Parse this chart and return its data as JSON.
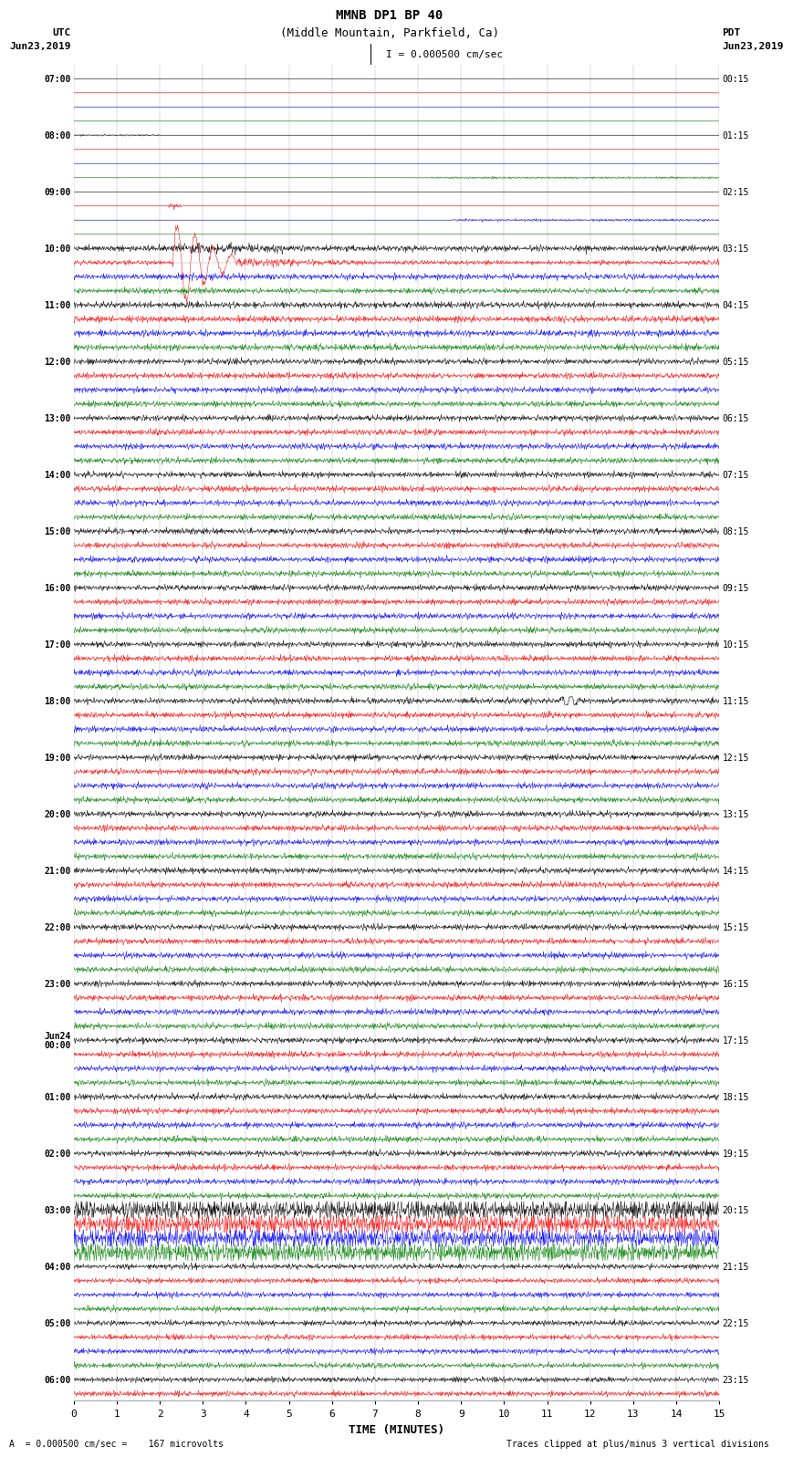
{
  "title_line1": "MMNB DP1 BP 40",
  "title_line2": "(Middle Mountain, Parkfield, Ca)",
  "scale_label": "I = 0.000500 cm/sec",
  "footer_left": "= 0.000500 cm/sec =    167 microvolts",
  "footer_right": "Traces clipped at plus/minus 3 vertical divisions",
  "xlabel": "TIME (MINUTES)",
  "left_label": "UTC",
  "right_label": "PDT",
  "left_date": "Jun23,2019",
  "right_date": "Jun23,2019",
  "xlim": [
    0,
    15
  ],
  "background_color": "#ffffff",
  "trace_colors": [
    "black",
    "red",
    "blue",
    "green"
  ],
  "grid_color": "#aaaaaa",
  "fig_width": 8.5,
  "fig_height": 16.13,
  "dpi": 100,
  "left_utc_labels": [
    "07:00",
    "",
    "",
    "",
    "08:00",
    "",
    "",
    "",
    "09:00",
    "",
    "",
    "",
    "10:00",
    "",
    "",
    "",
    "11:00",
    "",
    "",
    "",
    "12:00",
    "",
    "",
    "",
    "13:00",
    "",
    "",
    "",
    "14:00",
    "",
    "",
    "",
    "15:00",
    "",
    "",
    "",
    "16:00",
    "",
    "",
    "",
    "17:00",
    "",
    "",
    "",
    "18:00",
    "",
    "",
    "",
    "19:00",
    "",
    "",
    "",
    "20:00",
    "",
    "",
    "",
    "21:00",
    "",
    "",
    "",
    "22:00",
    "",
    "",
    "",
    "23:00",
    "",
    "",
    "",
    "Jun24\n00:00",
    "",
    "",
    "",
    "01:00",
    "",
    "",
    "",
    "02:00",
    "",
    "",
    "",
    "03:00",
    "",
    "",
    "",
    "04:00",
    "",
    "",
    "",
    "05:00",
    "",
    "",
    "",
    "06:00",
    ""
  ],
  "right_pdt_labels": [
    "00:15",
    "",
    "",
    "",
    "01:15",
    "",
    "",
    "",
    "02:15",
    "",
    "",
    "",
    "03:15",
    "",
    "",
    "",
    "04:15",
    "",
    "",
    "",
    "05:15",
    "",
    "",
    "",
    "06:15",
    "",
    "",
    "",
    "07:15",
    "",
    "",
    "",
    "08:15",
    "",
    "",
    "",
    "09:15",
    "",
    "",
    "",
    "10:15",
    "",
    "",
    "",
    "11:15",
    "",
    "",
    "",
    "12:15",
    "",
    "",
    "",
    "13:15",
    "",
    "",
    "",
    "14:15",
    "",
    "",
    "",
    "15:15",
    "",
    "",
    "",
    "16:15",
    "",
    "",
    "",
    "17:15",
    "",
    "",
    "",
    "18:15",
    "",
    "",
    "",
    "19:15",
    "",
    "",
    "",
    "20:15",
    "",
    "",
    "",
    "21:15",
    "",
    "",
    "",
    "22:15",
    "",
    "",
    "",
    "23:15",
    ""
  ]
}
